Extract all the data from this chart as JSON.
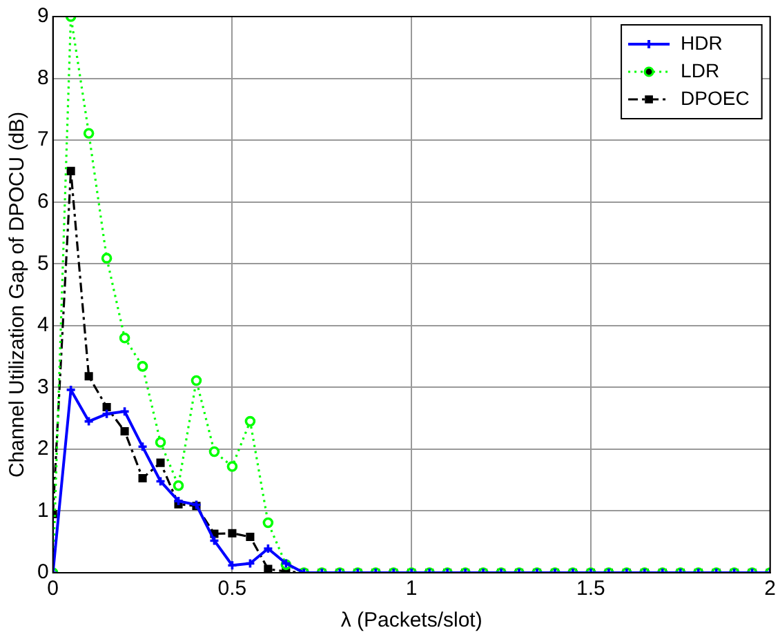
{
  "chart_data": {
    "type": "line",
    "xlabel": "λ (Packets/slot)",
    "ylabel": "Channel Utilization Gap of DPOCU (dB)",
    "x": [
      0,
      0.05,
      0.1,
      0.15,
      0.2,
      0.25,
      0.3,
      0.35,
      0.4,
      0.45,
      0.5,
      0.55,
      0.6,
      0.65,
      0.7,
      0.75,
      0.8,
      0.85,
      0.9,
      0.95,
      1,
      1.05,
      1.1,
      1.15,
      1.2,
      1.25,
      1.3,
      1.35,
      1.4,
      1.45,
      1.5,
      1.55,
      1.6,
      1.65,
      1.7,
      1.75,
      1.8,
      1.85,
      1.9,
      1.95,
      2
    ],
    "series": [
      {
        "name": "HDR",
        "color": "#0000ff",
        "marker": "cross",
        "line_style": "solid",
        "values": [
          0,
          2.96,
          2.45,
          2.57,
          2.61,
          2.04,
          1.48,
          1.16,
          1.1,
          0.52,
          0.12,
          0.15,
          0.39,
          0.15,
          0,
          0,
          0,
          0,
          0,
          0,
          0,
          0,
          0,
          0,
          0,
          0,
          0,
          0,
          0,
          0,
          0,
          0,
          0,
          0,
          0,
          0,
          0,
          0,
          0,
          0,
          0
        ]
      },
      {
        "name": "LDR",
        "color": "#00ff00",
        "marker": "circle",
        "line_style": "dotted",
        "values": [
          0,
          9,
          7.11,
          5.09,
          3.8,
          3.34,
          2.11,
          1.41,
          3.11,
          1.96,
          1.72,
          2.45,
          0.81,
          0.13,
          0,
          0,
          0,
          0,
          0,
          0,
          0,
          0,
          0,
          0,
          0,
          0,
          0,
          0,
          0,
          0,
          0,
          0,
          0,
          0,
          0,
          0,
          0,
          0,
          0,
          0,
          0
        ]
      },
      {
        "name": "DPOEC",
        "color": "#000000",
        "marker": "square",
        "line_style": "dashed",
        "values": [
          0.95,
          6.5,
          3.18,
          2.68,
          2.29,
          1.53,
          1.78,
          1.11,
          1.08,
          0.63,
          0.64,
          0.58,
          0.06,
          0.02,
          0,
          0,
          0,
          0,
          0,
          0,
          0,
          0,
          0,
          0,
          0,
          0,
          0,
          0,
          0,
          0,
          0,
          0,
          0,
          0,
          0,
          0,
          0,
          0,
          0,
          0,
          0
        ]
      }
    ],
    "xlim": [
      0,
      2
    ],
    "xticks": [
      0,
      0.5,
      1,
      1.5,
      2
    ],
    "ylim": [
      0,
      9
    ],
    "yticks": [
      0,
      1,
      2,
      3,
      4,
      5,
      6,
      7,
      8,
      9
    ],
    "grid": true,
    "legend": "top right"
  }
}
